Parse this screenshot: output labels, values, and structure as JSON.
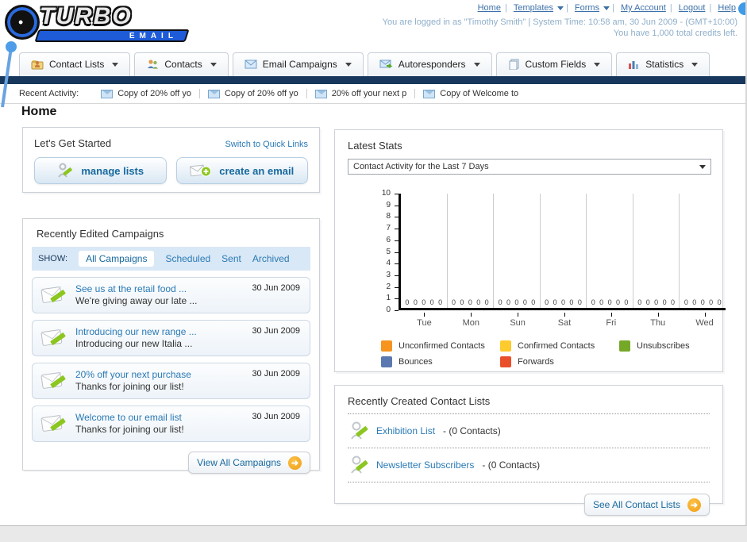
{
  "logo": {
    "title": "TURBO",
    "subtitle": "EMAIL"
  },
  "header": {
    "links": [
      {
        "label": "Home",
        "dropdown": false
      },
      {
        "label": "Templates",
        "dropdown": true
      },
      {
        "label": "Forms",
        "dropdown": true
      },
      {
        "label": "My Account",
        "dropdown": false
      },
      {
        "label": "Logout",
        "dropdown": false
      },
      {
        "label": "Help",
        "dropdown": false
      }
    ],
    "login_line": "You are logged in as \"Timothy Smith\" | System Time: 10:58 am, 30 Jun 2009 - (GMT+10:00)",
    "credits_line": "You have 1,000 total credits left."
  },
  "nav": {
    "tabs": [
      {
        "label": "Contact Lists",
        "icon": "folder-contacts-icon"
      },
      {
        "label": "Contacts",
        "icon": "people-icon"
      },
      {
        "label": "Email Campaigns",
        "icon": "envelope-icon"
      },
      {
        "label": "Autoresponders",
        "icon": "envelope-arrow-icon"
      },
      {
        "label": "Custom Fields",
        "icon": "documents-icon"
      },
      {
        "label": "Statistics",
        "icon": "bar-chart-icon"
      }
    ]
  },
  "recent_activity": {
    "label": "Recent Activity:",
    "items": [
      "Copy of 20% off yo",
      "Copy of 20% off yo",
      "20% off your next p",
      "Copy of Welcome to"
    ]
  },
  "page_title": "Home",
  "get_started": {
    "title": "Let's Get Started",
    "switch_link": "Switch to Quick Links",
    "manage_lists_label": "manage lists",
    "create_email_label": "create an email"
  },
  "campaigns": {
    "title": "Recently Edited Campaigns",
    "show_label": "SHOW:",
    "filters": [
      "All Campaigns",
      "Scheduled",
      "Sent",
      "Archived"
    ],
    "active_filter": "All Campaigns",
    "items": [
      {
        "title": "See us at the retail food ...",
        "subtitle": "We're giving away our late ...",
        "date": "30 Jun 2009"
      },
      {
        "title": "Introducing our new range ...",
        "subtitle": "Introducing our new Italia ...",
        "date": "30 Jun 2009"
      },
      {
        "title": "20% off your next purchase",
        "subtitle": "Thanks for joining our list!",
        "date": "30 Jun 2009"
      },
      {
        "title": "Welcome to our email list",
        "subtitle": "Thanks for joining our list!",
        "date": "30 Jun 2009"
      }
    ],
    "view_all_label": "View All Campaigns",
    "arrow_glyph": "➜"
  },
  "latest_stats": {
    "title": "Latest Stats",
    "dropdown_value": "Contact Activity for the Last 7 Days"
  },
  "chart_data": {
    "type": "bar",
    "title": "Contact Activity for the Last 7 Days",
    "categories": [
      "Tue",
      "Mon",
      "Sun",
      "Sat",
      "Fri",
      "Thu",
      "Wed"
    ],
    "series": [
      {
        "name": "Unconfirmed Contacts",
        "color": "#F6941E",
        "values": [
          0,
          0,
          0,
          0,
          0,
          0,
          0
        ]
      },
      {
        "name": "Confirmed Contacts",
        "color": "#FECB2F",
        "values": [
          0,
          0,
          0,
          0,
          0,
          0,
          0
        ]
      },
      {
        "name": "Unsubscribes",
        "color": "#76A828",
        "values": [
          0,
          0,
          0,
          0,
          0,
          0,
          0
        ]
      },
      {
        "name": "Bounces",
        "color": "#5B79B0",
        "values": [
          0,
          0,
          0,
          0,
          0,
          0,
          0
        ]
      },
      {
        "name": "Forwards",
        "color": "#EA4F2C",
        "values": [
          0,
          0,
          0,
          0,
          0,
          0,
          0
        ]
      }
    ],
    "xlabel": "",
    "ylabel": "",
    "ylim": [
      0,
      10
    ],
    "yticks": [
      0,
      1,
      2,
      3,
      4,
      5,
      6,
      7,
      8,
      9,
      10
    ],
    "grid": "vertical",
    "legend_position": "bottom"
  },
  "contact_lists": {
    "title": "Recently Created Contact Lists",
    "items": [
      {
        "name": "Exhibition List",
        "suffix": "- (0 Contacts)"
      },
      {
        "name": "Newsletter Subscribers",
        "suffix": "- (0 Contacts)"
      }
    ],
    "see_all_label": "See All Contact Lists",
    "arrow_glyph": "➜"
  }
}
